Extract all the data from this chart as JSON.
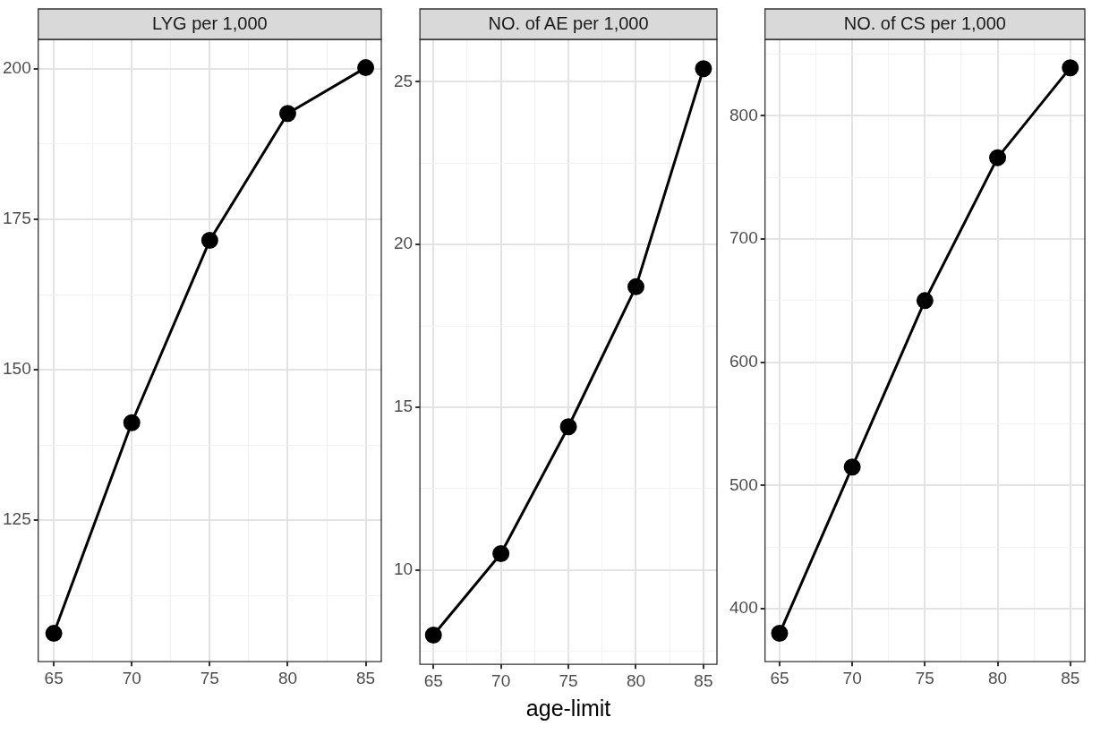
{
  "chart_data": [
    {
      "type": "line",
      "title": "LYG per 1,000",
      "x": [
        65,
        70,
        75,
        80,
        85
      ],
      "values": [
        106.2,
        141.2,
        171.5,
        192.6,
        200.2
      ],
      "color": "#000000",
      "marker": "circle",
      "line_style": "solid",
      "xlim": [
        64,
        86
      ],
      "xticks": [
        65,
        {
          "value": 67.5,
          "label": null
        },
        70,
        {
          "value": 72.5,
          "label": null
        },
        75,
        {
          "value": 77.5,
          "label": null
        },
        80,
        {
          "value": 82.5,
          "label": null
        },
        85
      ],
      "ylim": [
        101.5,
        204.9
      ],
      "yticks": [
        {
          "value": 112.5,
          "label": null
        },
        125,
        {
          "value": 137.5,
          "label": null
        },
        150,
        {
          "value": 162.5,
          "label": null
        },
        175,
        {
          "value": 187.5,
          "label": null
        },
        200
      ],
      "grid": true,
      "legend": false
    },
    {
      "type": "line",
      "title": "NO. of AE per 1,000",
      "xlabel": "age-limit",
      "x": [
        65,
        70,
        75,
        80,
        85
      ],
      "values": [
        8.0,
        10.5,
        14.4,
        18.7,
        25.4
      ],
      "color": "#000000",
      "marker": "circle",
      "line_style": "solid",
      "xlim": [
        64,
        86
      ],
      "xticks": [
        65,
        {
          "value": 67.5,
          "label": null
        },
        70,
        {
          "value": 72.5,
          "label": null
        },
        75,
        {
          "value": 77.5,
          "label": null
        },
        80,
        {
          "value": 82.5,
          "label": null
        },
        85
      ],
      "ylim": [
        7.1,
        26.3
      ],
      "yticks": [
        {
          "value": 7.5,
          "label": null
        },
        10,
        {
          "value": 12.5,
          "label": null
        },
        15,
        {
          "value": 17.5,
          "label": null
        },
        20,
        {
          "value": 22.5,
          "label": null
        },
        25
      ],
      "grid": true,
      "legend": false
    },
    {
      "type": "line",
      "title": "NO. of CS per 1,000",
      "x": [
        65,
        70,
        75,
        80,
        85
      ],
      "values": [
        380,
        515,
        650,
        766,
        839
      ],
      "color": "#000000",
      "marker": "circle",
      "line_style": "solid",
      "xlim": [
        64,
        86
      ],
      "xticks": [
        65,
        {
          "value": 67.5,
          "label": null
        },
        70,
        {
          "value": 72.5,
          "label": null
        },
        75,
        {
          "value": 77.5,
          "label": null
        },
        80,
        {
          "value": 82.5,
          "label": null
        },
        85
      ],
      "ylim": [
        357,
        862
      ],
      "yticks": [
        400,
        {
          "value": 450,
          "label": null
        },
        500,
        {
          "value": 550,
          "label": null
        },
        600,
        {
          "value": 650,
          "label": null
        },
        700,
        {
          "value": 750,
          "label": null
        },
        800,
        {
          "value": 850,
          "label": null
        }
      ],
      "grid": true,
      "legend": false
    }
  ]
}
